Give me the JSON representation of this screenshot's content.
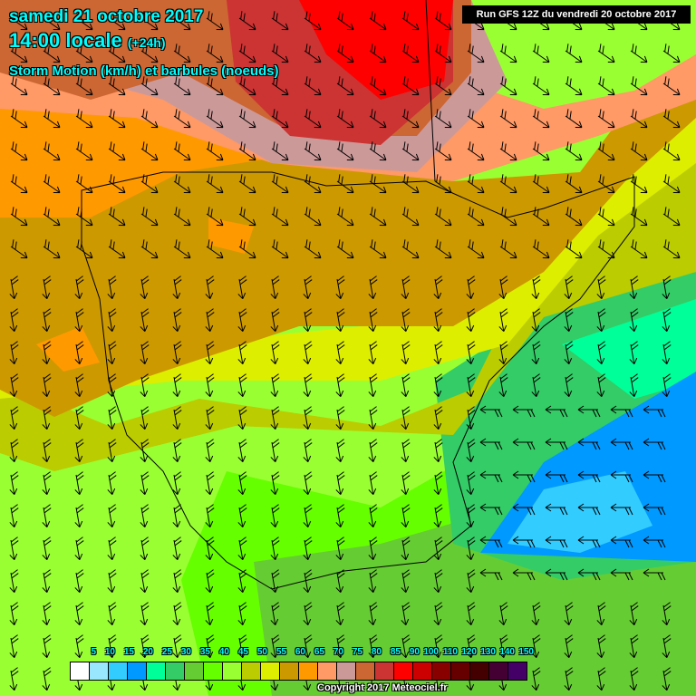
{
  "header": {
    "date": "samedi 21 octobre 2017",
    "time": "14:00 locale",
    "lead": "(+24h)",
    "parameter": "Storm Motion (km/h) et barbules (noeuds)",
    "run": "Run GFS 12Z du vendredi 20 octobre 2017"
  },
  "legend": {
    "labels": [
      "5",
      "10",
      "15",
      "20",
      "25",
      "30",
      "35",
      "40",
      "45",
      "50",
      "55",
      "60",
      "65",
      "70",
      "75",
      "80",
      "85",
      "90",
      "100",
      "110",
      "120",
      "130",
      "140",
      "150"
    ],
    "colors": [
      "#ffffff",
      "#99e6ff",
      "#33ccff",
      "#0099ff",
      "#00ff99",
      "#33cc66",
      "#66cc33",
      "#66ff00",
      "#99ff33",
      "#bbcc00",
      "#ddee00",
      "#cc9900",
      "#ff9900",
      "#ff9966",
      "#cc9999",
      "#cc6633",
      "#cc3333",
      "#ff0000",
      "#cc0000",
      "#880000",
      "#660000",
      "#440000",
      "#440033",
      "#440066"
    ]
  },
  "copyright": "Copyright 2017 Meteociel.fr"
}
